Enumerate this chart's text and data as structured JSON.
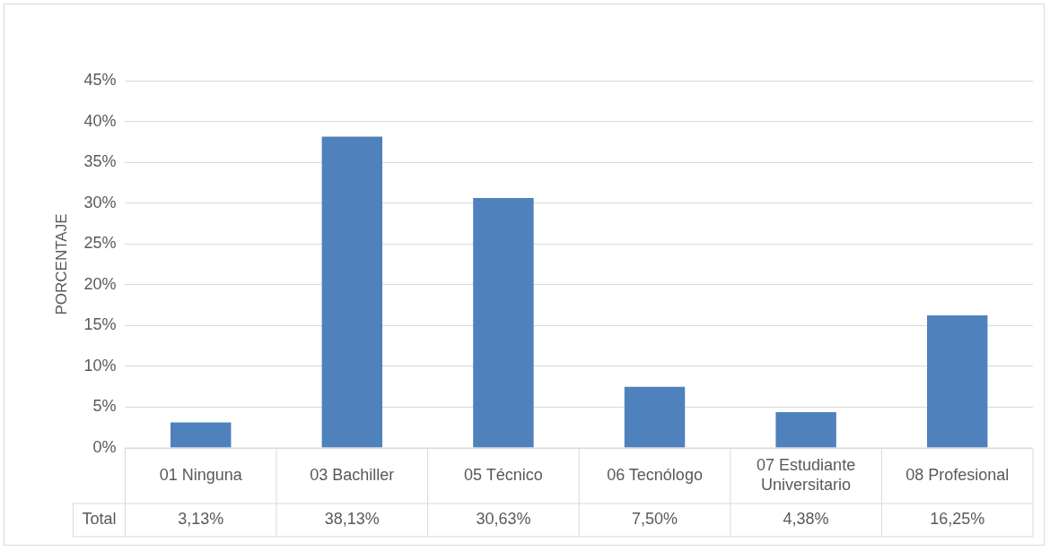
{
  "chart_data": {
    "type": "bar",
    "ylabel": "PORCENTAJE",
    "categories": [
      "01 Ninguna",
      "03 Bachiller",
      "05 Técnico",
      "06 Tecnólogo",
      "07 Estudiante Universitario",
      "08 Profesional"
    ],
    "series": [
      {
        "name": "Total",
        "color": "#4f81bd",
        "values": [
          3.13,
          38.13,
          30.63,
          7.5,
          4.38,
          16.25
        ],
        "value_labels": [
          "3,13%",
          "38,13%",
          "30,63%",
          "7,50%",
          "4,38%",
          "16,25%"
        ]
      }
    ],
    "ylim": [
      0,
      45
    ],
    "yticks": [
      {
        "value": 0,
        "label": "0%"
      },
      {
        "value": 5,
        "label": "5%"
      },
      {
        "value": 10,
        "label": "10%"
      },
      {
        "value": 15,
        "label": "15%"
      },
      {
        "value": 20,
        "label": "20%"
      },
      {
        "value": 25,
        "label": "25%"
      },
      {
        "value": 30,
        "label": "30%"
      },
      {
        "value": 35,
        "label": "35%"
      },
      {
        "value": 40,
        "label": "40%"
      },
      {
        "value": 45,
        "label": "45%"
      }
    ],
    "grid": "y",
    "legend": false
  }
}
